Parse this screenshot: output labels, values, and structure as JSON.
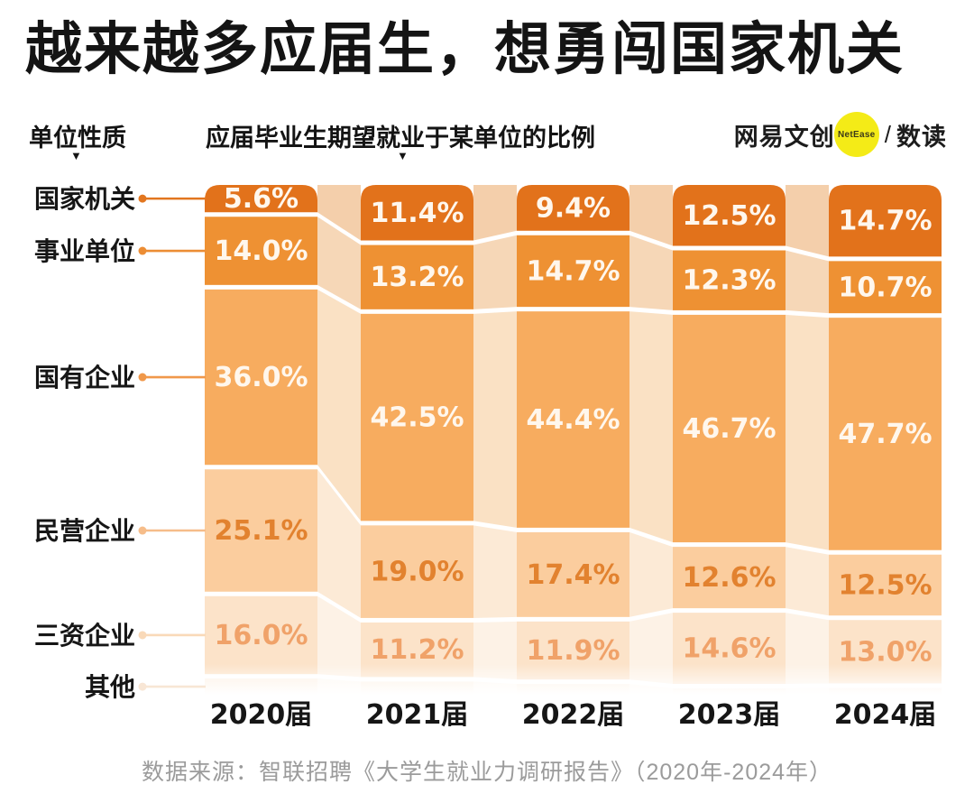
{
  "title": "越来越多应届生，想勇闯国家机关",
  "header": {
    "y_axis_title": "单位性质",
    "subtitle": "应届毕业生期望就业于某单位的比例",
    "marker_glyph": "▼"
  },
  "logo": {
    "brand": "网易文创",
    "badge": "NetEase",
    "separator": "/",
    "product": "数读",
    "badge_color": "#f4eb17"
  },
  "footer": {
    "source": "数据来源：智联招聘《大学生就业力调研报告》（2020年-2024年）"
  },
  "chart_data": {
    "type": "bar",
    "subtype": "stacked-alluvial-columns",
    "stacked": true,
    "total_per_column": 100,
    "categories": [
      "2020届",
      "2021届",
      "2022届",
      "2023届",
      "2024届"
    ],
    "series": [
      {
        "name": "国家机关",
        "values": [
          5.6,
          11.4,
          9.4,
          12.5,
          14.7
        ],
        "color": "#e2721b",
        "flow_color": "#f4cfab",
        "connector_color": "#e2761f",
        "value_label_color": "#fff7ed",
        "show_value_labels": true
      },
      {
        "name": "事业单位",
        "values": [
          14.0,
          13.2,
          14.7,
          12.3,
          10.7
        ],
        "color": "#ee9133",
        "flow_color": "#f6d7b7",
        "connector_color": "#ec8d34",
        "value_label_color": "#fff7ed",
        "show_value_labels": true
      },
      {
        "name": "国有企业",
        "values": [
          36.0,
          42.5,
          44.4,
          46.7,
          47.7
        ],
        "color": "#f7ac5f",
        "flow_color": "#fae1c4",
        "connector_color": "#f0984a",
        "value_label_color": "#fff7ed",
        "show_value_labels": true
      },
      {
        "name": "民营企业",
        "values": [
          25.1,
          19.0,
          17.4,
          12.6,
          12.5
        ],
        "color": "#fbcd9e",
        "flow_color": "#fcead6",
        "connector_color": "#f6bd8a",
        "value_label_color": "#e2822f",
        "show_value_labels": true
      },
      {
        "name": "三资企业",
        "values": [
          16.0,
          11.2,
          11.9,
          14.6,
          13.0
        ],
        "color": "#fce3c9",
        "flow_color": "#fdf2e6",
        "connector_color": "#f9d9b8",
        "value_label_color": "#f0a269",
        "show_value_labels": true
      },
      {
        "name": "其他",
        "values": [
          3.3,
          2.7,
          2.2,
          1.3,
          1.4
        ],
        "color": "#fdf0e2",
        "flow_color": "#fef8f1",
        "connector_color": "#f8e6d5",
        "value_label_color": "#f5c9a4",
        "show_value_labels": false
      }
    ],
    "value_suffix": "%",
    "value_decimals": 1,
    "ylim": [
      0,
      100
    ],
    "grid": false,
    "legend_position": "left",
    "bottom_fade": true
  }
}
